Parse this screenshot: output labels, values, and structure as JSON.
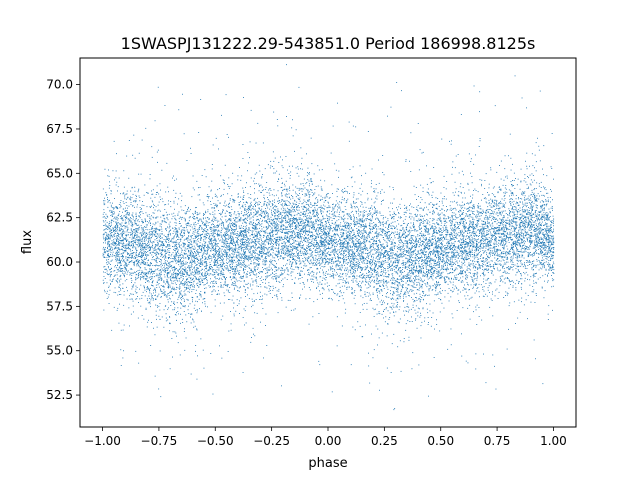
{
  "chart_data": {
    "type": "scatter",
    "title": "1SWASPJ131222.29-543851.0 Period 186998.8125s",
    "xlabel": "phase",
    "ylabel": "flux",
    "xlim": [
      -1.1,
      1.1
    ],
    "ylim": [
      50.7,
      71.5
    ],
    "xticks": [
      -1.0,
      -0.75,
      -0.5,
      -0.25,
      0.0,
      0.25,
      0.5,
      0.75,
      1.0
    ],
    "xtick_labels": [
      "−1.00",
      "−0.75",
      "−0.50",
      "−0.25",
      "0.00",
      "0.25",
      "0.50",
      "0.75",
      "1.00"
    ],
    "yticks": [
      52.5,
      55.0,
      57.5,
      60.0,
      62.5,
      65.0,
      67.5,
      70.0
    ],
    "ytick_labels": [
      "52.5",
      "55.0",
      "57.5",
      "60.0",
      "62.5",
      "65.0",
      "67.5",
      "70.0"
    ],
    "grid": false,
    "marker_color": "#1f77b4",
    "series": [
      {
        "phase_range": [
          -1.0,
          1.0
        ],
        "points_per_unit_phase": 7000,
        "envelope": [
          {
            "phase": -1.0,
            "mean": 61.2,
            "spread": 1.3
          },
          {
            "phase": -0.9,
            "mean": 61.0,
            "spread": 1.4
          },
          {
            "phase": -0.8,
            "mean": 60.6,
            "spread": 1.5
          },
          {
            "phase": -0.7,
            "mean": 60.1,
            "spread": 1.6
          },
          {
            "phase": -0.6,
            "mean": 60.4,
            "spread": 1.5
          },
          {
            "phase": -0.5,
            "mean": 60.8,
            "spread": 1.4
          },
          {
            "phase": -0.4,
            "mean": 61.0,
            "spread": 1.4
          },
          {
            "phase": -0.3,
            "mean": 61.3,
            "spread": 1.5
          },
          {
            "phase": -0.2,
            "mean": 61.6,
            "spread": 1.5
          },
          {
            "phase": -0.1,
            "mean": 61.8,
            "spread": 1.4
          },
          {
            "phase": 0.0,
            "mean": 61.2,
            "spread": 1.3
          },
          {
            "phase": 0.1,
            "mean": 61.0,
            "spread": 1.4
          },
          {
            "phase": 0.2,
            "mean": 60.6,
            "spread": 1.5
          },
          {
            "phase": 0.3,
            "mean": 60.1,
            "spread": 1.6
          },
          {
            "phase": 0.4,
            "mean": 60.4,
            "spread": 1.5
          },
          {
            "phase": 0.5,
            "mean": 60.8,
            "spread": 1.4
          },
          {
            "phase": 0.6,
            "mean": 61.0,
            "spread": 1.4
          },
          {
            "phase": 0.7,
            "mean": 61.3,
            "spread": 1.5
          },
          {
            "phase": 0.8,
            "mean": 61.6,
            "spread": 1.5
          },
          {
            "phase": 0.9,
            "mean": 61.8,
            "spread": 1.4
          },
          {
            "phase": 1.0,
            "mean": 61.2,
            "spread": 1.3
          }
        ]
      }
    ]
  }
}
